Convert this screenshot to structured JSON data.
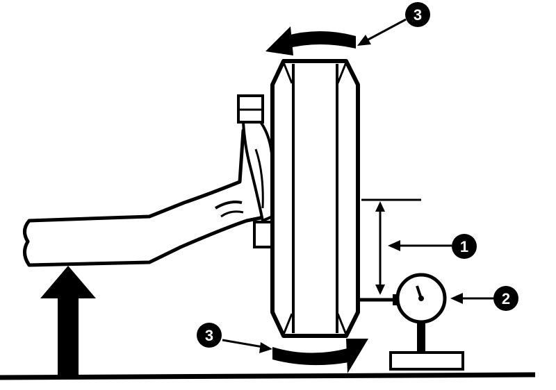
{
  "diagram": {
    "callouts": [
      {
        "id": "measurement-range",
        "label": "1"
      },
      {
        "id": "dial-gauge",
        "label": "2"
      },
      {
        "id": "rotation-top",
        "label": "3"
      },
      {
        "id": "rotation-bottom",
        "label": "3"
      }
    ],
    "colors": {
      "ink": "#000000",
      "paper": "#ffffff"
    },
    "icons": [
      "lift-arrow-icon",
      "rotation-arrow-icon",
      "dial-gauge-icon",
      "double-arrow-icon"
    ]
  }
}
